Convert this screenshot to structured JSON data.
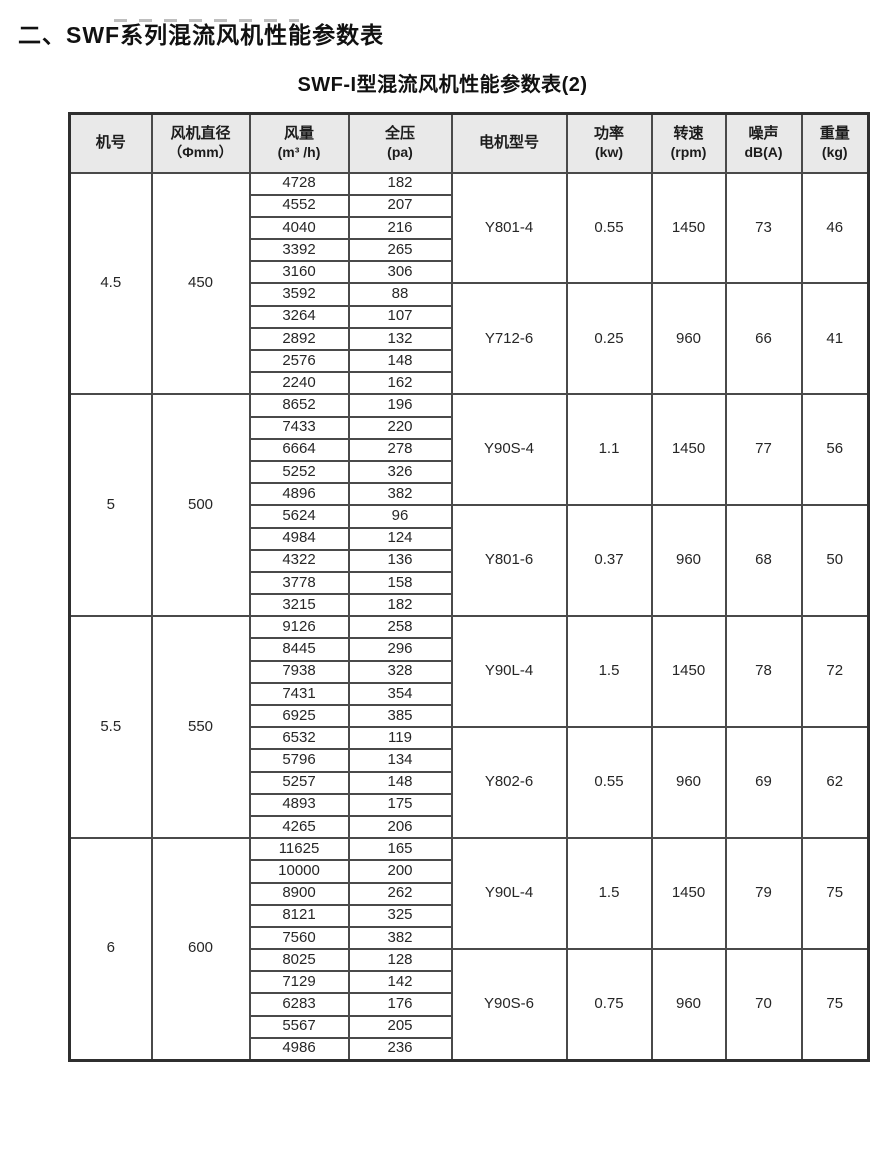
{
  "page": {
    "heading": "二、SWF系列混流风机性能参数表",
    "subtitle": "SWF-I型混流风机性能参数表(2)"
  },
  "colors": {
    "header_bg": "#e9e9e9",
    "border": "#4a4a4a",
    "text": "#262626"
  },
  "table": {
    "headers": [
      {
        "line1": "机号",
        "line2": ""
      },
      {
        "line1": "风机直径",
        "line2": "（Φmm）"
      },
      {
        "line1": "风量",
        "line2": "(m³ /h)"
      },
      {
        "line1": "全压",
        "line2": "(pa)"
      },
      {
        "line1": "电机型号",
        "line2": ""
      },
      {
        "line1": "功率",
        "line2": "(kw)"
      },
      {
        "line1": "转速",
        "line2": "(rpm)"
      },
      {
        "line1": "噪声",
        "line2": "dB(A)"
      },
      {
        "line1": "重量",
        "line2": "(kg)"
      }
    ],
    "sections": [
      {
        "model": "4.5",
        "diameter": "450",
        "groups": [
          {
            "rows": [
              [
                "4728",
                "182"
              ],
              [
                "4552",
                "207"
              ],
              [
                "4040",
                "216"
              ],
              [
                "3392",
                "265"
              ],
              [
                "3160",
                "306"
              ]
            ],
            "motor": "Y801-4",
            "power": "0.55",
            "speed": "1450",
            "noise": "73",
            "weight": "46"
          },
          {
            "rows": [
              [
                "3592",
                "88"
              ],
              [
                "3264",
                "107"
              ],
              [
                "2892",
                "132"
              ],
              [
                "2576",
                "148"
              ],
              [
                "2240",
                "162"
              ]
            ],
            "motor": "Y712-6",
            "power": "0.25",
            "speed": "960",
            "noise": "66",
            "weight": "41"
          }
        ]
      },
      {
        "model": "5",
        "diameter": "500",
        "groups": [
          {
            "rows": [
              [
                "8652",
                "196"
              ],
              [
                "7433",
                "220"
              ],
              [
                "6664",
                "278"
              ],
              [
                "5252",
                "326"
              ],
              [
                "4896",
                "382"
              ]
            ],
            "motor": "Y90S-4",
            "power": "1.1",
            "speed": "1450",
            "noise": "77",
            "weight": "56"
          },
          {
            "rows": [
              [
                "5624",
                "96"
              ],
              [
                "4984",
                "124"
              ],
              [
                "4322",
                "136"
              ],
              [
                "3778",
                "158"
              ],
              [
                "3215",
                "182"
              ]
            ],
            "motor": "Y801-6",
            "power": "0.37",
            "speed": "960",
            "noise": "68",
            "weight": "50"
          }
        ]
      },
      {
        "model": "5.5",
        "diameter": "550",
        "groups": [
          {
            "rows": [
              [
                "9126",
                "258"
              ],
              [
                "8445",
                "296"
              ],
              [
                "7938",
                "328"
              ],
              [
                "7431",
                "354"
              ],
              [
                "6925",
                "385"
              ]
            ],
            "motor": "Y90L-4",
            "power": "1.5",
            "speed": "1450",
            "noise": "78",
            "weight": "72"
          },
          {
            "rows": [
              [
                "6532",
                "119"
              ],
              [
                "5796",
                "134"
              ],
              [
                "5257",
                "148"
              ],
              [
                "4893",
                "175"
              ],
              [
                "4265",
                "206"
              ]
            ],
            "motor": "Y802-6",
            "power": "0.55",
            "speed": "960",
            "noise": "69",
            "weight": "62"
          }
        ]
      },
      {
        "model": "6",
        "diameter": "600",
        "groups": [
          {
            "rows": [
              [
                "11625",
                "165"
              ],
              [
                "10000",
                "200"
              ],
              [
                "8900",
                "262"
              ],
              [
                "8121",
                "325"
              ],
              [
                "7560",
                "382"
              ]
            ],
            "motor": "Y90L-4",
            "power": "1.5",
            "speed": "1450",
            "noise": "79",
            "weight": "75"
          },
          {
            "rows": [
              [
                "8025",
                "128"
              ],
              [
                "7129",
                "142"
              ],
              [
                "6283",
                "176"
              ],
              [
                "5567",
                "205"
              ],
              [
                "4986",
                "236"
              ]
            ],
            "motor": "Y90S-6",
            "power": "0.75",
            "speed": "960",
            "noise": "70",
            "weight": "75"
          }
        ]
      }
    ]
  }
}
